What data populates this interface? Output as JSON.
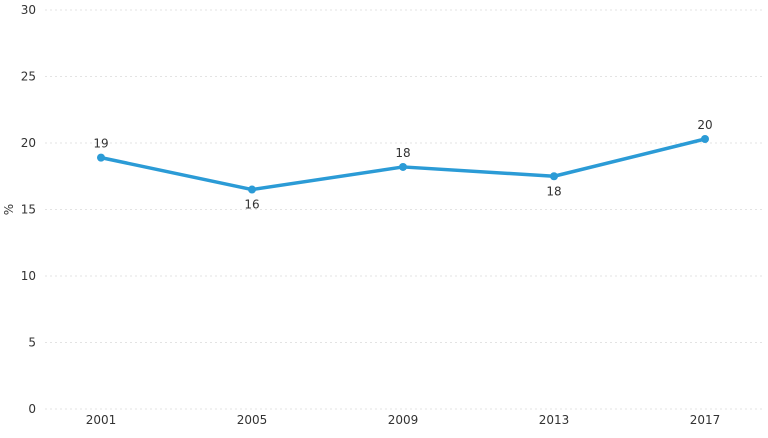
{
  "chart_data": {
    "type": "line",
    "title": "",
    "xlabel": "",
    "ylabel": "%",
    "ylim": [
      0,
      30
    ],
    "yticks": [
      "0",
      "5",
      "10",
      "15",
      "20",
      "25",
      "30"
    ],
    "ytick_values": [
      0,
      5,
      10,
      15,
      20,
      25,
      30
    ],
    "categories": [
      "2001",
      "2005",
      "2009",
      "2013",
      "2017"
    ],
    "grid": true,
    "legend": "none",
    "series": [
      {
        "color": "#2b9bd6",
        "values": [
          18.9,
          16.5,
          18.2,
          17.5,
          20.3
        ],
        "labels": [
          "19",
          "16",
          "18",
          "18",
          "20"
        ],
        "label_positions": [
          "above",
          "below",
          "above",
          "below",
          "above"
        ]
      }
    ]
  }
}
